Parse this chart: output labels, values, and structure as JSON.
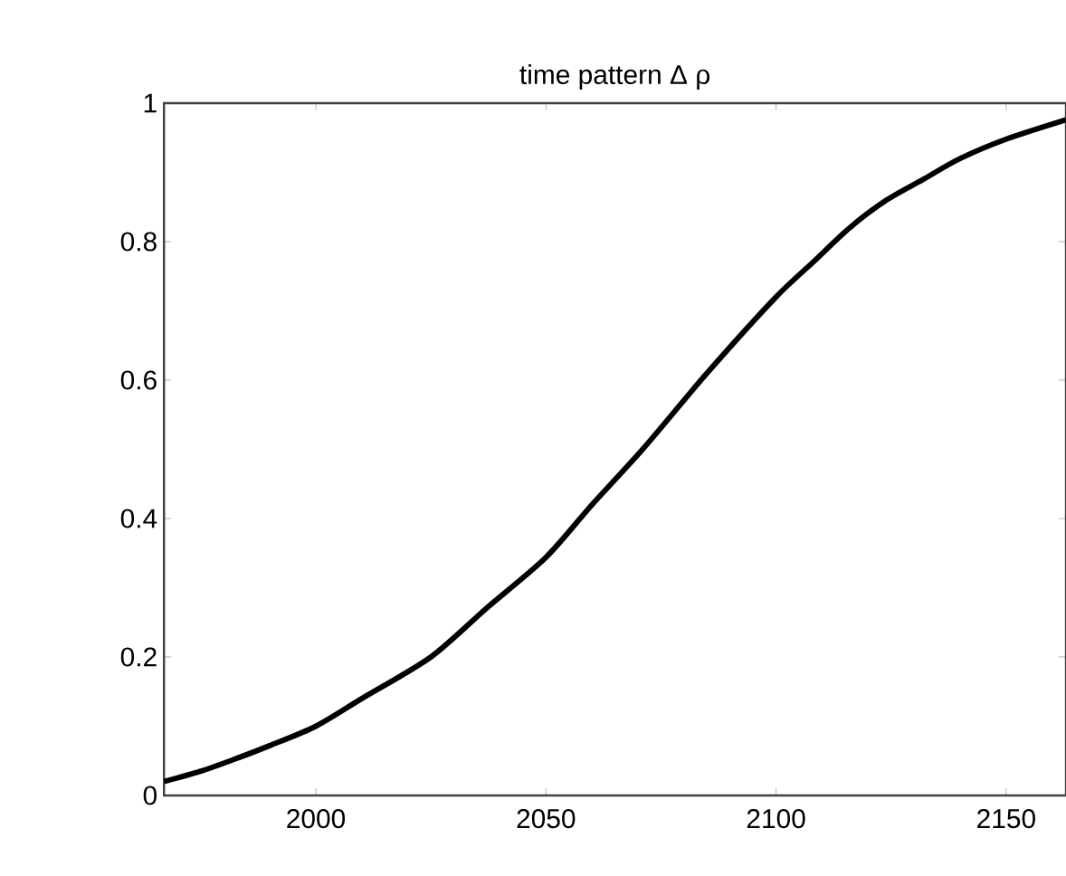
{
  "chart_data": {
    "type": "line",
    "title": "time pattern Δ ρ",
    "x": [
      1967,
      1975,
      1983,
      1990,
      2000,
      2010,
      2025,
      2037,
      2050,
      2060,
      2071,
      2085,
      2100,
      2108,
      2116,
      2124,
      2132,
      2140,
      2150,
      2163
    ],
    "series": [
      {
        "color": "#000000",
        "values": [
          0.02,
          0.035,
          0.054,
          0.072,
          0.1,
          0.14,
          0.2,
          0.27,
          0.344,
          0.42,
          0.5,
          0.61,
          0.72,
          0.77,
          0.82,
          0.86,
          0.89,
          0.92,
          0.948,
          0.976
        ]
      }
    ],
    "xlim": [
      1967,
      2163
    ],
    "ylim": [
      0,
      1
    ],
    "xticks": [
      2000,
      2050,
      2100,
      2150
    ],
    "yticks": [
      0,
      0.2,
      0.4,
      0.6,
      0.8,
      1
    ],
    "grid": false,
    "marker": "none",
    "line_style": "solid"
  }
}
